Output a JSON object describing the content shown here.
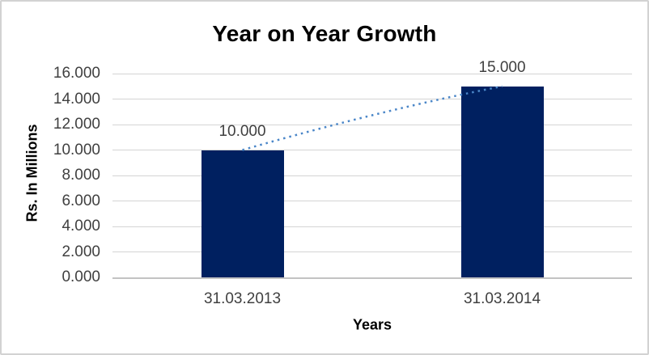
{
  "chart_data": {
    "type": "bar",
    "title": "Year on Year Growth",
    "xlabel": "Years",
    "ylabel": "Rs. In Millions",
    "categories": [
      "31.03.2013",
      "31.03.2014"
    ],
    "values": [
      10000,
      15000
    ],
    "value_labels": [
      "10.000",
      "15.000"
    ],
    "y_ticks": [
      "16.000",
      "14.000",
      "12.000",
      "10.000",
      "8.000",
      "6.000",
      "4.000",
      "2.000",
      "0.000"
    ],
    "ylim": [
      0,
      16000
    ],
    "grid": true,
    "legend": false,
    "bar_color": "#002060",
    "gridline_color": "#d4d4d4",
    "trendline": {
      "style": "dotted",
      "color": "#4a86c8"
    }
  }
}
